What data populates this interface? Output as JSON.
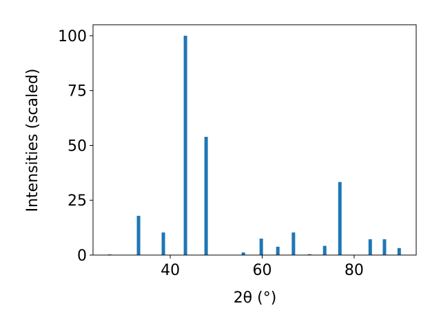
{
  "chart_data": {
    "type": "bar",
    "xlabel": "2θ (°)",
    "ylabel": "Intensities (scaled)",
    "x": [
      26.8,
      33.1,
      38.5,
      43.3,
      47.8,
      55.9,
      59.8,
      63.4,
      66.8,
      70.3,
      73.6,
      76.9,
      83.5,
      86.6,
      89.8
    ],
    "values": [
      0.3,
      17.9,
      10.3,
      100,
      53.9,
      1.2,
      7.5,
      3.8,
      10.3,
      0.4,
      4.2,
      33.3,
      7.2,
      7.2,
      3.2
    ],
    "color": "#1f77b4",
    "xlim": [
      23.2,
      93.5
    ],
    "xticks": [
      40,
      60,
      80
    ],
    "ylim": [
      0,
      105
    ],
    "yticks": [
      0,
      25,
      50,
      75,
      100
    ]
  }
}
